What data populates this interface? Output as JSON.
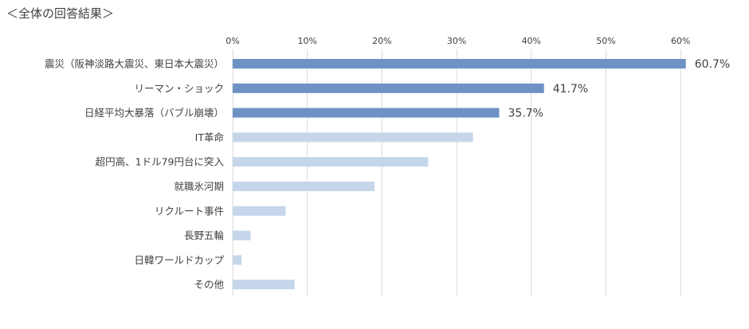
{
  "page": {
    "title": "＜全体の回答結果＞"
  },
  "chart_data": {
    "type": "bar",
    "orientation": "horizontal",
    "title": "＜全体の回答結果＞",
    "xlabel": "",
    "ylabel": "",
    "xlim": [
      0,
      0.6
    ],
    "x_ticks": [
      {
        "value": 0.0,
        "label": "0%"
      },
      {
        "value": 0.1,
        "label": "10%"
      },
      {
        "value": 0.2,
        "label": "20%"
      },
      {
        "value": 0.3,
        "label": "30%"
      },
      {
        "value": 0.4,
        "label": "40%"
      },
      {
        "value": 0.5,
        "label": "50%"
      },
      {
        "value": 0.6,
        "label": "60%"
      }
    ],
    "grid": "vertical",
    "categories": [
      "震災（阪神淡路大震災、東日本大震災）",
      "リーマン・ショック",
      "日経平均大暴落（バブル崩壊）",
      "IT革命",
      "超円高、1ドル79円台に突入",
      "就職氷河期",
      "リクルート事件",
      "長野五輪",
      "日韓ワールドカップ",
      "その他"
    ],
    "values": [
      0.607,
      0.417,
      0.357,
      0.322,
      0.262,
      0.19,
      0.071,
      0.024,
      0.012,
      0.083
    ],
    "data_labels": [
      "60.7%",
      "41.7%",
      "35.7%",
      "",
      "",
      "",
      "",
      "",
      "",
      ""
    ],
    "highlighted": [
      true,
      true,
      true,
      false,
      false,
      false,
      false,
      false,
      false,
      false
    ],
    "colors": {
      "highlight": "#6f92c4",
      "normal": "#c6d6ea",
      "grid": "#d9d9d9",
      "text": "#404040"
    }
  }
}
